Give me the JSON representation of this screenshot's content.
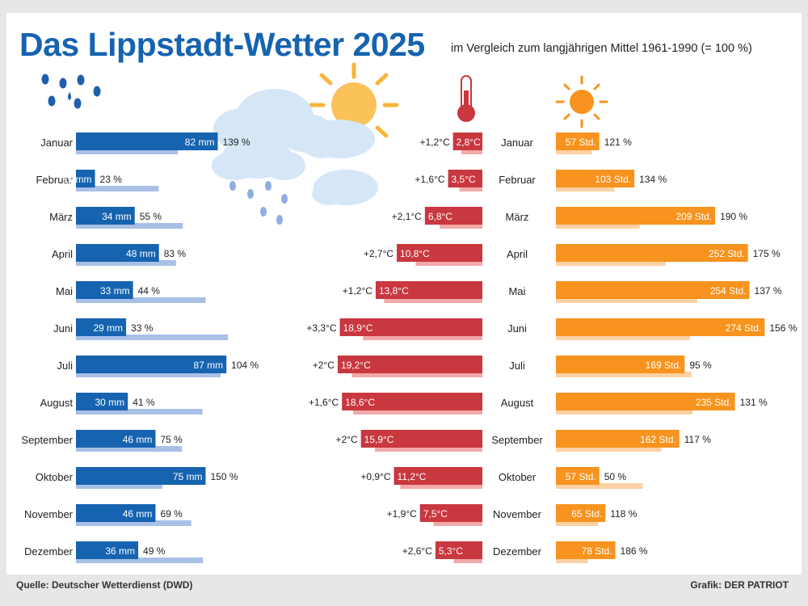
{
  "title": "Das Lippstadt-Wetter 2025",
  "subtitle": "im Vergleich zum langjährigen Mittel 1961-1990 (= 100 %)",
  "source": "Quelle: Deutscher Wetterdienst (DWD)",
  "credit": "Grafik: DER PATRIOT",
  "colors": {
    "rain": "#1663b0",
    "rain_ref": "#a9c0e6",
    "temp": "#c9373f",
    "temp_ref": "#f1a9a9",
    "sun": "#f7931e",
    "sun_ref": "#fcd1a4",
    "cloud": "#d5e7f6"
  },
  "icons": [
    "raindrops-icon",
    "cloud-sun-rain-icon",
    "thermometer-icon",
    "sun-icon"
  ],
  "chart_data": [
    {
      "type": "bar",
      "name": "Niederschlag",
      "categories": [
        "Januar",
        "Februar",
        "März",
        "April",
        "Mai",
        "Juni",
        "Juli",
        "August",
        "September",
        "Oktober",
        "November",
        "Dezember"
      ],
      "values": [
        82,
        11,
        34,
        48,
        33,
        29,
        87,
        30,
        46,
        75,
        46,
        36
      ],
      "value_labels": [
        "82 mm",
        "11 mm",
        "34 mm",
        "48 mm",
        "33 mm",
        "29 mm",
        "87 mm",
        "30 mm",
        "46 mm",
        "75 mm",
        "46 mm",
        "36 mm"
      ],
      "percent_labels": [
        "139 %",
        "23 %",
        "55 %",
        "83 %",
        "44 %",
        "33 %",
        "104 %",
        "41 %",
        "75 %",
        "150 %",
        "69 %",
        "49 %"
      ],
      "unit": "mm"
    },
    {
      "type": "bar",
      "name": "Temperatur",
      "categories": [
        "Januar",
        "Februar",
        "März",
        "April",
        "Mai",
        "Juni",
        "Juli",
        "August",
        "September",
        "Oktober",
        "November",
        "Dezember"
      ],
      "values": [
        2.8,
        3.5,
        6.8,
        10.8,
        13.8,
        18.9,
        19.2,
        18.6,
        15.9,
        11.2,
        7.5,
        5.3
      ],
      "deviation": [
        1.2,
        1.6,
        2.1,
        2.7,
        1.2,
        3.3,
        2,
        1.6,
        2,
        0.9,
        1.9,
        2.6
      ],
      "value_labels": [
        "2,8°C",
        "3,5°C",
        "6,8°C",
        "10,8°C",
        "13,8°C",
        "18,9°C",
        "19,2°C",
        "18,6°C",
        "15,9°C",
        "11,2°C",
        "7,5°C",
        "5,3°C"
      ],
      "deviation_labels": [
        "+1,2°C",
        "+1,6°C",
        "+2,1°C",
        "+2,7°C",
        "+1,2°C",
        "+3,3°C",
        "+2°C",
        "+1,6°C",
        "+2°C",
        "+0,9°C",
        "+1,9°C",
        "+2,6°C"
      ],
      "unit": "°C"
    },
    {
      "type": "bar",
      "name": "Sonnenscheindauer",
      "categories": [
        "Januar",
        "Februar",
        "März",
        "April",
        "Mai",
        "Juni",
        "Juli",
        "August",
        "September",
        "Oktober",
        "November",
        "Dezember"
      ],
      "values": [
        57,
        103,
        209,
        252,
        254,
        274,
        169,
        235,
        162,
        57,
        65,
        78
      ],
      "value_labels": [
        "57 Std.",
        "103 Std.",
        "209 Std.",
        "252 Std.",
        "254 Std.",
        "274 Std.",
        "169 Std.",
        "235 Std.",
        "162 Std.",
        "57 Std.",
        "65 Std.",
        "78 Std."
      ],
      "percent_labels": [
        "121 %",
        "134 %",
        "190 %",
        "175 %",
        "137 %",
        "156 %",
        "95 %",
        "131 %",
        "117 %",
        "50 %",
        "118 %",
        "186 %"
      ],
      "unit": "Std."
    }
  ]
}
